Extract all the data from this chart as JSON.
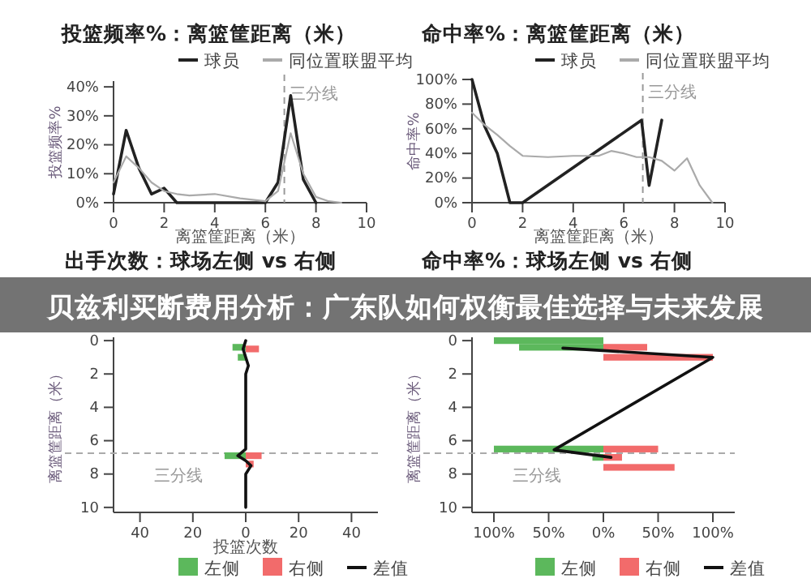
{
  "chart_data": [
    {
      "type": "line",
      "title": "投篮频率%：离篮筐距离（米）",
      "xlabel": "离篮筐距离（米）",
      "ylabel": "投篮频率%",
      "legend": "top",
      "marker": "none",
      "grid": false,
      "xlim": [
        0,
        10
      ],
      "xticks": [
        0,
        2,
        4,
        6,
        8,
        10
      ],
      "ylim": [
        0,
        42
      ],
      "yticks": [
        {
          "value": 0,
          "label": "0%"
        },
        {
          "value": 10,
          "label": "10%"
        },
        {
          "value": 20,
          "label": "20%"
        },
        {
          "value": 30,
          "label": "30%"
        },
        {
          "value": 40,
          "label": "40%"
        }
      ],
      "ref_lines": [
        {
          "axis": "x",
          "value": 6.75,
          "label": "三分线",
          "color": "#999999",
          "line_style": "dashed"
        }
      ],
      "annotations": [
        "贝兹利买断费用分析：广东队如何权衡最佳选择与未来发展"
      ],
      "series": [
        {
          "name": "球员",
          "color": "#222222",
          "x": [
            0,
            0.5,
            1,
            1.5,
            2,
            2.5,
            6,
            6.5,
            7,
            7.5,
            8
          ],
          "values": [
            3,
            25,
            12,
            3,
            5,
            0,
            0,
            7,
            37,
            8,
            0
          ]
        },
        {
          "name": "同位置联盟平均",
          "color": "#aaaaaa",
          "x": [
            0,
            0.5,
            1,
            1.5,
            2,
            2.5,
            3,
            4,
            5,
            6,
            6.5,
            7,
            7.5,
            8,
            8.5,
            9
          ],
          "values": [
            7,
            16,
            12,
            7,
            4,
            3,
            2.5,
            3,
            1.5,
            0.5,
            4,
            24,
            10,
            2,
            0.5,
            0
          ]
        }
      ]
    },
    {
      "type": "line",
      "title": "命中率%：离篮筐距离（米）",
      "xlabel": "离篮筐距离（米）",
      "ylabel": "命中率%",
      "legend": "top",
      "marker": "none",
      "grid": false,
      "xlim": [
        0,
        10
      ],
      "xticks": [
        0,
        2,
        4,
        6,
        8,
        10
      ],
      "ylim": [
        0,
        100
      ],
      "yticks": [
        {
          "value": 0,
          "label": "0%"
        },
        {
          "value": 20,
          "label": "20%"
        },
        {
          "value": 40,
          "label": "40%"
        },
        {
          "value": 60,
          "label": "60%"
        },
        {
          "value": 80,
          "label": "80%"
        },
        {
          "value": 100,
          "label": "100%"
        }
      ],
      "ref_lines": [
        {
          "axis": "x",
          "value": 6.75,
          "label": "三分线",
          "color": "#999999",
          "line_style": "dashed"
        }
      ],
      "series": [
        {
          "name": "球员",
          "color": "#222222",
          "x": [
            0,
            0.5,
            1,
            1.5,
            2,
            6.7,
            7,
            7.5
          ],
          "values": [
            100,
            62,
            40,
            0,
            0,
            67,
            14,
            67
          ]
        },
        {
          "name": "同位置联盟平均",
          "color": "#aaaaaa",
          "x": [
            0,
            0.5,
            1,
            1.5,
            2,
            3,
            4,
            5,
            5.5,
            6,
            6.5,
            7,
            7.5,
            8,
            8.5,
            9,
            9.5
          ],
          "values": [
            73,
            63,
            55,
            46,
            38,
            37,
            38,
            38,
            42,
            40,
            37,
            37,
            34,
            26,
            36,
            14,
            0
          ]
        }
      ]
    },
    {
      "type": "bar",
      "orientation": "horizontal",
      "stacked": true,
      "title": "出手次数：球场左侧 vs 右侧",
      "xlabel": "投篮次数",
      "ylabel": "离篮筐距离（米）",
      "legend": "bottom",
      "grid": false,
      "xlim": [
        -50,
        50
      ],
      "xticks": [
        {
          "value": -40,
          "label": "40"
        },
        {
          "value": -20,
          "label": "20"
        },
        0,
        20,
        40
      ],
      "ylim": [
        10.3,
        -0.2
      ],
      "yticks": [
        0,
        2,
        4,
        6,
        8,
        10
      ],
      "ref_lines": [
        {
          "axis": "y",
          "value": 6.75,
          "label": "三分线",
          "color": "#aaaaaa",
          "line_style": "dashed"
        }
      ],
      "series": [
        {
          "name": "左侧",
          "color": "#5cb85c",
          "x": [
            0.4,
            1,
            6.9
          ],
          "values": [
            -5,
            -3,
            -8
          ]
        },
        {
          "name": "右侧",
          "color": "#f26b6b",
          "x": [
            0.5,
            6.9,
            7.4
          ],
          "values": [
            5,
            6,
            3
          ]
        },
        {
          "name": "差值",
          "type": "line",
          "color": "#111111",
          "x": [
            0,
            0.5,
            1,
            1.5,
            2,
            2.5,
            3,
            4,
            5,
            6,
            6.5,
            6.9,
            7.2,
            7.5,
            8,
            9,
            10
          ],
          "values": [
            0,
            -1,
            0,
            1,
            0,
            0,
            0,
            0,
            0,
            0,
            0,
            -3,
            0,
            2,
            0,
            0,
            0
          ]
        }
      ]
    },
    {
      "type": "bar",
      "orientation": "horizontal",
      "stacked": true,
      "title": "命中率%：球场左侧 vs 右侧",
      "ylabel": "离篮筐距离（米）",
      "legend": "bottom",
      "grid": false,
      "xlim": [
        -120,
        120
      ],
      "xticks": [
        {
          "value": -100,
          "label": "100%"
        },
        {
          "value": -50,
          "label": "50%"
        },
        {
          "value": 0,
          "label": "0%"
        },
        {
          "value": 50,
          "label": "50%"
        },
        {
          "value": 100,
          "label": "100%"
        }
      ],
      "ylim": [
        10.3,
        -0.2
      ],
      "yticks": [
        0,
        2,
        4,
        6,
        8,
        10
      ],
      "ref_lines": [
        {
          "axis": "y",
          "value": 6.75,
          "label": "三分线",
          "color": "#aaaaaa",
          "line_style": "dashed"
        }
      ],
      "series": [
        {
          "name": "左侧",
          "color": "#5cb85c",
          "x": [
            0,
            0.4,
            6.5,
            7
          ],
          "values": [
            -100,
            -77,
            -100,
            -10
          ]
        },
        {
          "name": "右侧",
          "color": "#f26b6b",
          "x": [
            0.4,
            1,
            6.5,
            7,
            7.6
          ],
          "values": [
            40,
            100,
            50,
            17,
            65
          ]
        },
        {
          "name": "差值",
          "type": "line",
          "color": "#111111",
          "x": [
            0.45,
            1,
            6.55,
            7
          ],
          "values": [
            -37,
            100,
            -45,
            7
          ]
        }
      ]
    }
  ]
}
